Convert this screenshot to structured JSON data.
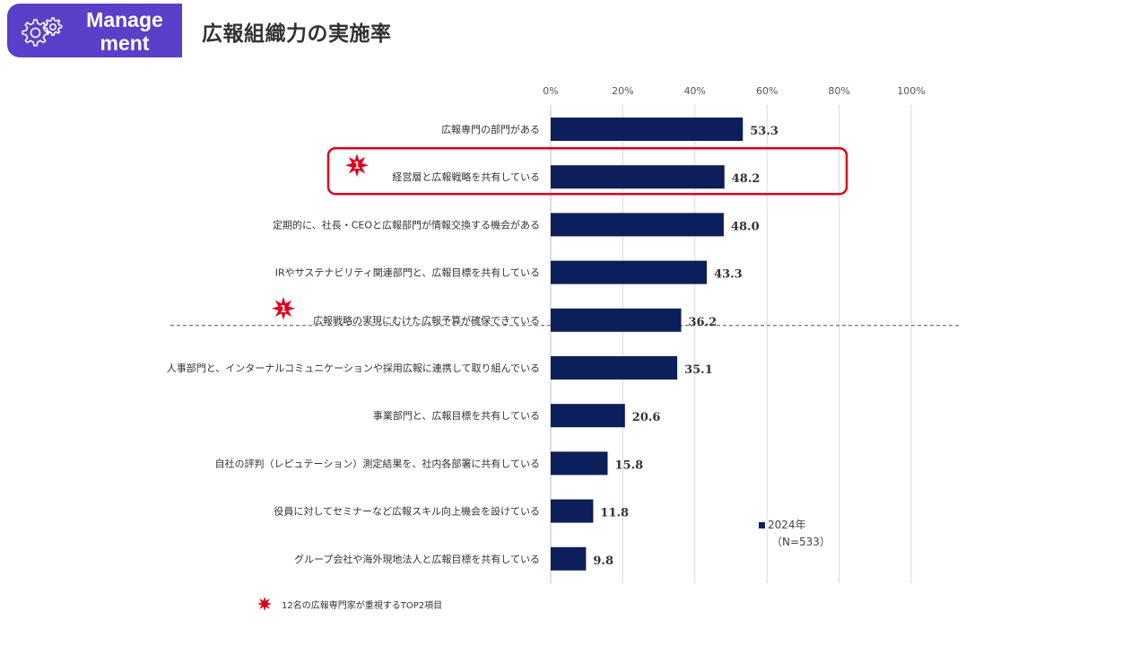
{
  "header": {
    "badge_label_line1": "Manage",
    "badge_label_line2": "ment",
    "badge_icon": "gear-icon",
    "title": "広報組織力の実施率"
  },
  "colors": {
    "bar": "#0c1f5a",
    "badge": "#5a3fc8",
    "highlight": "#e0001b",
    "star": "#e0001b"
  },
  "chart_data": {
    "type": "bar",
    "orientation": "horizontal",
    "categories": [
      "広報専門の部門がある",
      "経営層と広報戦略を共有している",
      "定期的に、社長・CEOと広報部門が情報交換する機会がある",
      "IRやサステナビリティ関連部門と、広報目標を共有している",
      "広報戦略の実現にむけた広報予算が確保できている",
      "人事部門と、インターナルコミュニケーションや採用広報に連携して取り組んでいる",
      "事業部門と、広報目標を共有している",
      "自社の評判（レピュテーション）測定結果を、社内各部署に共有している",
      "役員に対してセミナーなど広報スキル向上機会を設けている",
      "グループ会社や海外現地法人と広報目標を共有している"
    ],
    "series": [
      {
        "name": "2024年",
        "values": [
          53.3,
          48.2,
          48.0,
          43.3,
          36.2,
          35.1,
          20.6,
          15.8,
          11.8,
          9.8
        ]
      }
    ],
    "value_labels": [
      "53.3",
      "48.2",
      "48.0",
      "43.3",
      "36.2",
      "35.1",
      "20.6",
      "15.8",
      "11.8",
      "9.8"
    ],
    "x_ticks": [
      "0%",
      "20%",
      "40%",
      "60%",
      "80%",
      "100%"
    ],
    "xlim": [
      0,
      100
    ],
    "axis_position": "top",
    "grid": true,
    "legend": {
      "placement": "bottom-right",
      "label": "2024年",
      "note": "（N=533）"
    },
    "starred_categories": [
      1,
      4
    ],
    "star_label": "1",
    "highlighted_category": 1,
    "divider_after_category": 4
  },
  "footnote": {
    "text": "12名の広報専門家が重視するTOP2項目"
  }
}
